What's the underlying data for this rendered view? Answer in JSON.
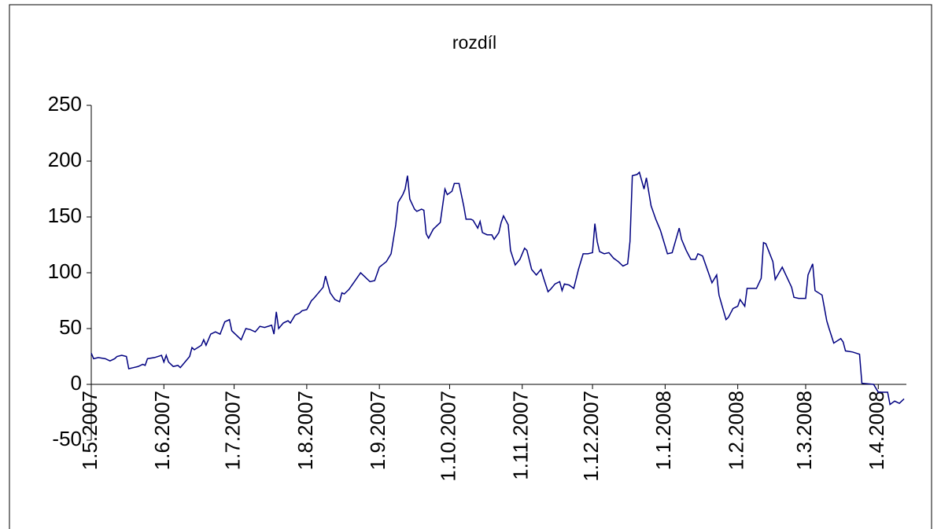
{
  "chart_data": {
    "type": "line",
    "title": "rozdíl",
    "color": "#000080",
    "x": [
      "1.5.2007",
      "2.5.2007",
      "4.5.2007",
      "7.5.2007",
      "9.5.2007",
      "11.5.2007",
      "12.5.2007",
      "14.5.2007",
      "16.5.2007",
      "17.5.2007",
      "19.5.2007",
      "21.5.2007",
      "23.5.2007",
      "24.5.2007",
      "25.5.2007",
      "28.5.2007",
      "31.5.2007",
      "1.6.2007",
      "2.6.2007",
      "3.6.2007",
      "5.6.2007",
      "7.6.2007",
      "8.6.2007",
      "10.6.2007",
      "12.6.2007",
      "13.6.2007",
      "14.6.2007",
      "17.6.2007",
      "18.6.2007",
      "19.6.2007",
      "21.6.2007",
      "23.6.2007",
      "25.6.2007",
      "27.6.2007",
      "29.6.2007",
      "30.6.2007",
      "4.7.2007",
      "6.7.2007",
      "8.7.2007",
      "10.7.2007",
      "12.7.2007",
      "14.7.2007",
      "17.7.2007",
      "18.7.2007",
      "19.7.2007",
      "20.7.2007",
      "22.7.2007",
      "24.7.2007",
      "25.7.2007",
      "27.7.2007",
      "29.7.2007",
      "30.7.2007",
      "1.8.2007",
      "3.8.2007",
      "4.8.2007",
      "6.8.2007",
      "8.8.2007",
      "9.8.2007",
      "11.8.2007",
      "13.8.2007",
      "15.8.2007",
      "16.8.2007",
      "17.8.2007",
      "19.8.2007",
      "21.8.2007",
      "24.8.2007",
      "26.8.2007",
      "28.8.2007",
      "30.8.2007",
      "1.9.2007",
      "4.9.2007",
      "6.9.2007",
      "8.9.2007",
      "9.9.2007",
      "11.9.2007",
      "12.9.2007",
      "13.9.2007",
      "14.9.2007",
      "16.9.2007",
      "17.9.2007",
      "19.9.2007",
      "20.9.2007",
      "21.9.2007",
      "22.9.2007",
      "24.9.2007",
      "26.9.2007",
      "27.9.2007",
      "29.9.2007",
      "30.9.2007",
      "2.10.2007",
      "3.10.2007",
      "5.10.2007",
      "7.10.2007",
      "8.10.2007",
      "10.10.2007",
      "11.10.2007",
      "13.10.2007",
      "14.10.2007",
      "15.10.2007",
      "17.10.2007",
      "19.10.2007",
      "20.10.2007",
      "22.10.2007",
      "23.10.2007",
      "24.10.2007",
      "26.10.2007",
      "27.10.2007",
      "29.10.2007",
      "31.10.2007",
      "2.11.2007",
      "3.11.2007",
      "5.11.2007",
      "7.11.2007",
      "9.11.2007",
      "10.11.2007",
      "12.11.2007",
      "13.11.2007",
      "15.11.2007",
      "17.11.2007",
      "18.11.2007",
      "19.11.2007",
      "21.11.2007",
      "23.11.2007",
      "25.11.2007",
      "27.11.2007",
      "29.11.2007",
      "1.12.2007",
      "2.12.2007",
      "3.12.2007",
      "4.12.2007",
      "6.12.2007",
      "8.12.2007",
      "10.12.2007",
      "12.12.2007",
      "14.12.2007",
      "16.12.2007",
      "17.12.2007",
      "18.12.2007",
      "20.12.2007",
      "21.12.2007",
      "23.12.2007",
      "24.12.2007",
      "26.12.2007",
      "28.12.2007",
      "30.12.2007",
      "2.1.2008",
      "4.1.2008",
      "7.1.2008",
      "8.1.2008",
      "10.1.2008",
      "12.1.2008",
      "14.1.2008",
      "15.1.2008",
      "17.1.2008",
      "19.1.2008",
      "21.1.2008",
      "23.1.2008",
      "24.1.2008",
      "27.1.2008",
      "28.1.2008",
      "30.1.2008",
      "1.2.2008",
      "2.2.2008",
      "4.2.2008",
      "5.2.2008",
      "9.2.2008",
      "11.2.2008",
      "12.2.2008",
      "13.2.2008",
      "16.2.2008",
      "17.2.2008",
      "20.2.2008",
      "24.2.2008",
      "25.2.2008",
      "27.2.2008",
      "1.3.2008",
      "2.3.2008",
      "4.3.2008",
      "5.3.2008",
      "8.3.2008",
      "10.3.2008",
      "11.3.2008",
      "13.3.2008",
      "16.3.2008",
      "17.3.2008",
      "18.3.2008",
      "21.3.2008",
      "24.3.2008",
      "25.3.2008",
      "30.3.2008",
      "1.4.2008",
      "5.4.2008",
      "6.4.2008",
      "8.4.2008",
      "10.4.2008",
      "12.4.2008"
    ],
    "values": [
      28,
      23,
      24,
      23,
      21,
      23,
      25,
      26,
      25,
      14,
      15,
      16,
      18,
      17,
      23,
      24,
      26,
      20,
      26,
      20,
      16,
      17,
      15,
      20,
      25,
      33,
      31,
      35,
      40,
      35,
      45,
      47,
      45,
      56,
      58,
      48,
      40,
      50,
      49,
      47,
      52,
      51,
      53,
      45,
      65,
      50,
      55,
      57,
      55,
      62,
      64,
      66,
      67,
      75,
      77,
      82,
      87,
      97,
      82,
      76,
      74,
      82,
      81,
      85,
      91,
      100,
      96,
      92,
      93,
      105,
      110,
      117,
      143,
      163,
      170,
      175,
      187,
      166,
      157,
      155,
      157,
      156,
      135,
      131,
      139,
      143,
      145,
      175,
      170,
      173,
      180,
      180,
      160,
      148,
      148,
      147,
      140,
      146,
      136,
      134,
      134,
      130,
      136,
      145,
      151,
      143,
      120,
      107,
      112,
      122,
      120,
      103,
      98,
      103,
      96,
      83,
      85,
      90,
      92,
      84,
      90,
      89,
      86,
      103,
      117,
      117,
      118,
      144,
      128,
      119,
      117,
      118,
      113,
      110,
      106,
      108,
      128,
      187,
      188,
      190,
      175,
      185,
      160,
      148,
      138,
      117,
      118,
      140,
      130,
      120,
      112,
      112,
      117,
      115,
      103,
      91,
      98,
      80,
      58,
      60,
      68,
      70,
      76,
      70,
      86,
      86,
      95,
      127,
      126,
      110,
      94,
      105,
      87,
      78,
      77,
      77,
      98,
      108,
      84,
      80,
      57,
      50,
      37,
      41,
      38,
      30,
      29,
      27,
      1,
      0,
      -7,
      -7,
      -18,
      -15,
      -17,
      -13
    ],
    "xlim": [
      "1.5.2007",
      "13.4.2008"
    ],
    "xticks": [
      "1.5.2007",
      "1.6.2007",
      "1.7.2007",
      "1.8.2007",
      "1.9.2007",
      "1.10.2007",
      "1.11.2007",
      "1.12.2007",
      "1.1.2008",
      "1.2.2008",
      "1.3.2008",
      "1.4.2008"
    ],
    "ylim": [
      -50,
      250
    ],
    "yticks": [
      -50,
      0,
      50,
      100,
      150,
      200,
      250
    ]
  }
}
